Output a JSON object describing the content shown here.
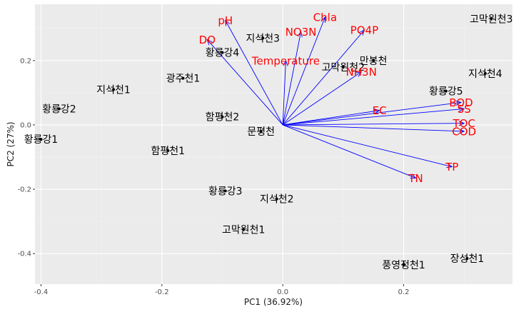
{
  "chart_data": {
    "type": "scatter",
    "title": "",
    "xlabel": "PC1 (36.92%)",
    "ylabel": "PC2 (27%)",
    "xlim": [
      -0.41,
      0.38
    ],
    "ylim": [
      -0.495,
      0.375
    ],
    "xticks": [
      -0.4,
      -0.2,
      0.0,
      0.2
    ],
    "yticks": [
      -0.4,
      -0.2,
      0.0,
      0.2
    ],
    "xtick_labels": [
      "-0.4",
      "-0.2",
      "0.0",
      "0.2"
    ],
    "ytick_labels": [
      "-0.4",
      "-0.2",
      "0.0",
      "0.2"
    ],
    "grid": true,
    "background": "#ebebeb",
    "point_color": "#000000",
    "arrow_color": "#0000ff",
    "variable_label_color": "#ff0000",
    "sites": [
      {
        "name": "고막원천3",
        "x": 0.345,
        "y": 0.33
      },
      {
        "name": "지석천3",
        "x": -0.033,
        "y": 0.27
      },
      {
        "name": "황룡강4",
        "x": -0.1,
        "y": 0.225
      },
      {
        "name": "만봉천",
        "x": 0.15,
        "y": 0.2
      },
      {
        "name": "고막원천2",
        "x": 0.1,
        "y": 0.18
      },
      {
        "name": "지석천4",
        "x": 0.335,
        "y": 0.16
      },
      {
        "name": "광주천1",
        "x": -0.165,
        "y": 0.145
      },
      {
        "name": "지석천1",
        "x": -0.28,
        "y": 0.11
      },
      {
        "name": "황룡강5",
        "x": 0.27,
        "y": 0.105
      },
      {
        "name": "황룡강2",
        "x": -0.37,
        "y": 0.05
      },
      {
        "name": "함평천2",
        "x": -0.1,
        "y": 0.025
      },
      {
        "name": "문평천",
        "x": -0.036,
        "y": -0.02
      },
      {
        "name": "황룡강1",
        "x": -0.4,
        "y": -0.045
      },
      {
        "name": "함평천1",
        "x": -0.19,
        "y": -0.08
      },
      {
        "name": "황룡강3",
        "x": -0.095,
        "y": -0.205
      },
      {
        "name": "지석천2",
        "x": -0.01,
        "y": -0.23
      },
      {
        "name": "고막원천1",
        "x": -0.065,
        "y": -0.325
      },
      {
        "name": "장성천1",
        "x": 0.305,
        "y": -0.415
      },
      {
        "name": "풍영정천1",
        "x": 0.2,
        "y": -0.435
      }
    ],
    "loadings": [
      {
        "name": "pH",
        "x": -0.095,
        "y": 0.325
      },
      {
        "name": "Chla",
        "x": 0.07,
        "y": 0.335
      },
      {
        "name": "DO",
        "x": -0.125,
        "y": 0.265
      },
      {
        "name": "NO3N",
        "x": 0.03,
        "y": 0.29
      },
      {
        "name": "PO4P",
        "x": 0.135,
        "y": 0.295
      },
      {
        "name": "Temperature",
        "x": 0.005,
        "y": 0.2
      },
      {
        "name": "NH3N",
        "x": 0.13,
        "y": 0.165
      },
      {
        "name": "EC",
        "x": 0.16,
        "y": 0.045
      },
      {
        "name": "BOD",
        "x": 0.295,
        "y": 0.07
      },
      {
        "name": "SS",
        "x": 0.3,
        "y": 0.05
      },
      {
        "name": "TOC",
        "x": 0.3,
        "y": 0.005
      },
      {
        "name": "COD",
        "x": 0.3,
        "y": -0.02
      },
      {
        "name": "TP",
        "x": 0.28,
        "y": -0.13
      },
      {
        "name": "TN",
        "x": 0.22,
        "y": -0.165
      }
    ]
  }
}
